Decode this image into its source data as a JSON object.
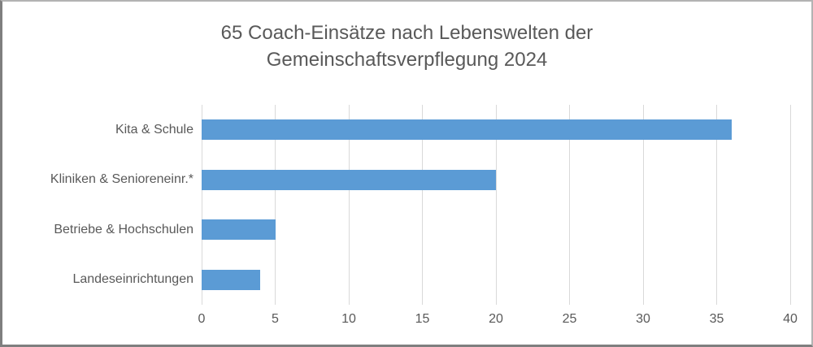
{
  "window": {
    "background_color": "#ffffff",
    "frame_border_color": "#7f7f7f"
  },
  "chart_data": {
    "type": "bar",
    "orientation": "horizontal",
    "title": "65 Coach-Einsätze nach Lebenswelten der Gemeinschaftsverpflegung 2024",
    "title_lines": [
      "65 Coach-Einsätze nach Lebenswelten der",
      "Gemeinschaftsverpflegung 2024"
    ],
    "categories": [
      "Kita & Schule",
      "Kliniken & Senioreneinr.*",
      "Betriebe & Hochschulen",
      "Landeseinrichtungen"
    ],
    "values": [
      36,
      20,
      5,
      4
    ],
    "xlabel": "",
    "ylabel": "",
    "xlim": [
      0,
      40
    ],
    "x_ticks": [
      0,
      5,
      10,
      15,
      20,
      25,
      30,
      35,
      40
    ],
    "grid": "vertical-only",
    "legend": "none",
    "bar_color": "#5B9BD5",
    "gridline_color": "#d9d9d9",
    "text_color": "#595959"
  }
}
